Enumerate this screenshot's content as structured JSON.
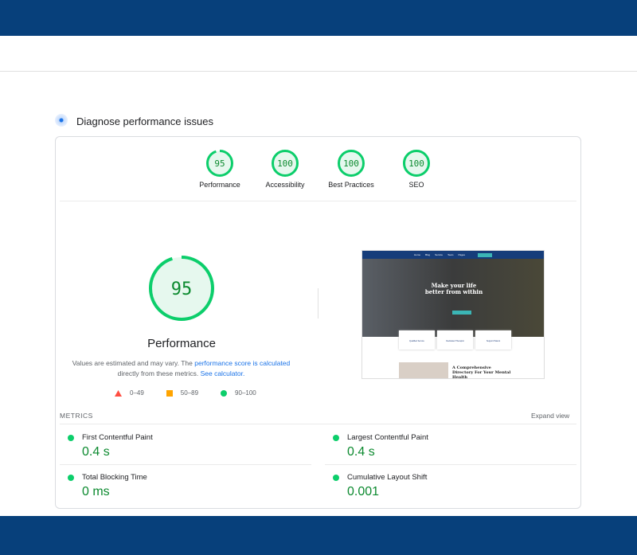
{
  "header": {
    "title": "Diagnose performance issues",
    "icon": "lighthouse-dot-icon"
  },
  "gauges": [
    {
      "label": "Performance",
      "score": 95
    },
    {
      "label": "Accessibility",
      "score": 100
    },
    {
      "label": "Best Practices",
      "score": 100
    },
    {
      "label": "SEO",
      "score": 100
    }
  ],
  "colors": {
    "pass": "#0cce6b",
    "pass_text": "#0c8a2f",
    "average": "#ffa400",
    "fail": "#ff4e42",
    "link": "#1a73e8",
    "band": "#07407b"
  },
  "main": {
    "score": 95,
    "label": "Performance",
    "note_prefix": "Values are estimated and may vary. The ",
    "note_link1": "performance score is calculated",
    "note_mid": " directly from these metrics. ",
    "note_link2": "See calculator."
  },
  "legend": [
    {
      "icon": "triangle-icon",
      "range": "0–49"
    },
    {
      "icon": "square-icon",
      "range": "50–89"
    },
    {
      "icon": "circle-icon",
      "range": "90–100"
    }
  ],
  "screenshot": {
    "nav": [
      "Home",
      "Blog",
      "Service",
      "Team",
      "Pages"
    ],
    "hero": "Make your life better from within",
    "cards": [
      "Qualified Service",
      "Dedicated Therapist",
      "Support Patient"
    ],
    "section": "A Comprehensive Directory For Your Mental Health"
  },
  "metrics": {
    "title": "METRICS",
    "expand": "Expand view",
    "items": [
      {
        "label": "First Contentful Paint",
        "value": "0.4 s"
      },
      {
        "label": "Largest Contentful Paint",
        "value": "0.4 s"
      },
      {
        "label": "Total Blocking Time",
        "value": "0 ms"
      },
      {
        "label": "Cumulative Layout Shift",
        "value": "0.001"
      }
    ]
  }
}
